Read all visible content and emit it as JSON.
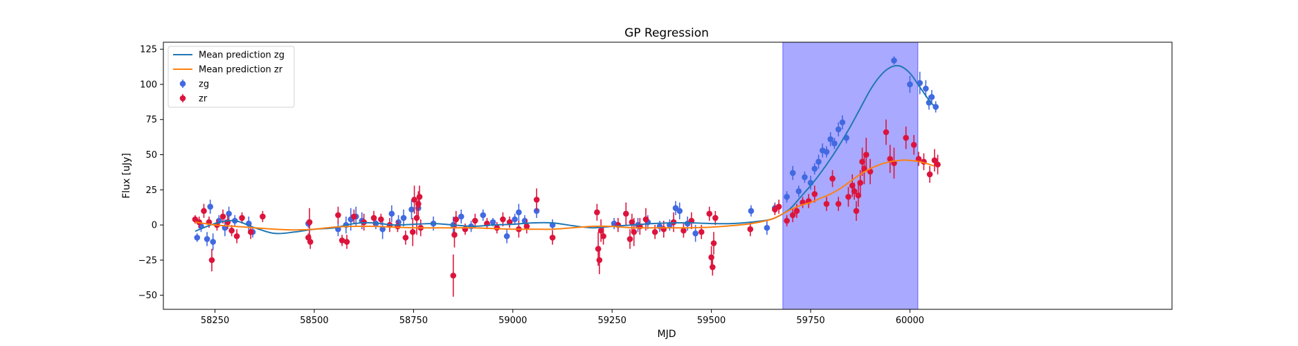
{
  "chart_data": {
    "type": "line",
    "title": "GP Regression",
    "xlabel": "MJD",
    "ylabel": "Flux [uJy]",
    "xlim": [
      58120,
      60660
    ],
    "ylim": [
      -60,
      130
    ],
    "xticks": [
      58250,
      58500,
      58750,
      59000,
      59250,
      59500,
      59750,
      60000
    ],
    "yticks": [
      -50,
      -25,
      0,
      25,
      50,
      75,
      100,
      125
    ],
    "grid": false,
    "legend_position": "top-left",
    "highlight_span": {
      "x0": 59680,
      "x1": 60020,
      "color": "#7b7bff"
    },
    "series": [
      {
        "name": "Mean prediction zg",
        "kind": "line",
        "color": "#1f77b4",
        "x": [
          58200,
          58250,
          58300,
          58350,
          58400,
          58450,
          58500,
          58550,
          58600,
          58650,
          58700,
          58750,
          58800,
          58850,
          58900,
          58950,
          59000,
          59050,
          59100,
          59150,
          59200,
          59250,
          59300,
          59350,
          59400,
          59450,
          59500,
          59550,
          59600,
          59650,
          59680,
          59700,
          59725,
          59750,
          59775,
          59800,
          59825,
          59850,
          59875,
          59900,
          59925,
          59950,
          59975,
          60000,
          60025,
          60050,
          60060
        ],
        "y": [
          -4.5,
          1,
          3,
          -2,
          -6,
          -5,
          -3,
          -2,
          1,
          1.5,
          0,
          0.5,
          1,
          0,
          -1,
          0,
          0.5,
          1.5,
          1.5,
          -0.5,
          -2,
          -1,
          0,
          1,
          1.5,
          1.5,
          1,
          1,
          2,
          4,
          8,
          12,
          20,
          28,
          37,
          47,
          58,
          70,
          83,
          96,
          106,
          112,
          113,
          108,
          98,
          88,
          85
        ]
      },
      {
        "name": "Mean prediction zr",
        "kind": "line",
        "color": "#ff7f0e",
        "x": [
          58200,
          58250,
          58300,
          58350,
          58400,
          58450,
          58500,
          58550,
          58600,
          58650,
          58700,
          58750,
          58800,
          58850,
          58900,
          58950,
          59000,
          59050,
          59100,
          59150,
          59200,
          59250,
          59300,
          59350,
          59400,
          59450,
          59500,
          59550,
          59600,
          59650,
          59680,
          59700,
          59725,
          59750,
          59775,
          59800,
          59825,
          59850,
          59875,
          59900,
          59925,
          59950,
          59975,
          60000,
          60025,
          60050,
          60060
        ],
        "y": [
          2,
          0,
          -1,
          -2,
          -3,
          -3.5,
          -3,
          -1.5,
          -1,
          -1,
          -1.5,
          -2,
          -2,
          -2,
          -2,
          -2.5,
          -3,
          -3,
          -3,
          -2,
          -1,
          -1,
          -2,
          -2,
          -2,
          -2,
          -1.5,
          -0.5,
          1,
          4,
          8,
          11,
          14,
          16,
          19,
          22,
          26,
          31,
          36,
          40,
          43,
          45,
          46,
          46,
          45,
          43,
          42
        ]
      },
      {
        "name": "zg",
        "kind": "errorbar",
        "color": "#4169e1",
        "x": [
          58205,
          58215,
          58230,
          58238,
          58245,
          58260,
          58275,
          58285,
          58300,
          58335,
          58345,
          58485,
          58560,
          58580,
          58592,
          58605,
          58620,
          58655,
          58672,
          58695,
          58712,
          58725,
          58745,
          58762,
          58800,
          58850,
          58870,
          58895,
          58925,
          58950,
          58985,
          59005,
          59015,
          59030,
          59060,
          59100,
          59255,
          59315,
          59340,
          59370,
          59395,
          59410,
          59420,
          59440,
          59460,
          59600,
          59640,
          59660,
          59690,
          59705,
          59720,
          59735,
          59750,
          59760,
          59770,
          59780,
          59790,
          59800,
          59810,
          59820,
          59830,
          59840,
          59960,
          60000,
          60025,
          60040,
          60048,
          60055,
          60065
        ],
        "y": [
          -9,
          -1,
          -10,
          13,
          -12,
          3,
          -2,
          8,
          3,
          1,
          -5,
          1,
          -3,
          0,
          4,
          6,
          3,
          1,
          -3,
          8,
          2,
          5,
          11,
          12,
          1,
          0,
          6,
          -1,
          7,
          2,
          -8,
          4,
          9,
          3,
          10,
          0,
          1,
          0,
          2,
          -1,
          0,
          12,
          10,
          1,
          -6,
          10,
          -2,
          12,
          20,
          37,
          24,
          34,
          30,
          40,
          45,
          53,
          52,
          61,
          58,
          68,
          73,
          62,
          117,
          100,
          101,
          97,
          87,
          91,
          84
        ],
        "err": [
          3,
          4,
          5,
          5,
          6,
          4,
          6,
          5,
          4,
          5,
          4,
          3,
          5,
          6,
          8,
          7,
          6,
          4,
          7,
          6,
          5,
          6,
          7,
          6,
          5,
          6,
          5,
          4,
          4,
          3,
          5,
          4,
          6,
          4,
          5,
          4,
          4,
          5,
          5,
          4,
          4,
          5,
          6,
          5,
          6,
          4,
          5,
          4,
          4,
          5,
          4,
          4,
          5,
          4,
          5,
          5,
          4,
          5,
          4,
          5,
          5,
          4,
          3,
          6,
          8,
          6,
          5,
          5,
          4
        ]
      },
      {
        "name": "zr",
        "kind": "errorbar",
        "color": "#dc143c",
        "x": [
          58200,
          58210,
          58222,
          58235,
          58242,
          58255,
          58270,
          58282,
          58292,
          58305,
          58318,
          58340,
          58370,
          58485,
          58488,
          58490,
          58560,
          58570,
          58582,
          58600,
          58625,
          58650,
          58668,
          58690,
          58710,
          58730,
          58748,
          58752,
          58758,
          58762,
          58765,
          58768,
          58850,
          58853,
          58857,
          58880,
          58905,
          58935,
          58960,
          58975,
          58992,
          59015,
          59035,
          59060,
          59100,
          59212,
          59215,
          59218,
          59222,
          59228,
          59265,
          59285,
          59295,
          59300,
          59305,
          59320,
          59335,
          59358,
          59380,
          59405,
          59430,
          59450,
          59475,
          59495,
          59500,
          59503,
          59506,
          59510,
          59598,
          59660,
          59670,
          59690,
          59705,
          59715,
          59730,
          59745,
          59760,
          59790,
          59805,
          59820,
          59845,
          59855,
          59860,
          59865,
          59870,
          59875,
          59880,
          59885,
          59890,
          59900,
          59940,
          59950,
          59960,
          59990,
          60010,
          60022,
          60035,
          60050,
          60062,
          60070
        ],
        "y": [
          4,
          2,
          10,
          2,
          -25,
          0,
          6,
          2,
          -4,
          -8,
          5,
          -5,
          6,
          -9,
          2,
          -12,
          7,
          -11,
          -12,
          6,
          2,
          5,
          4,
          0,
          -1,
          -9,
          -5,
          18,
          5,
          15,
          20,
          -2,
          -36,
          -7,
          4,
          -3,
          3,
          1,
          -2,
          4,
          2,
          -3,
          -1,
          18,
          -9,
          9,
          -17,
          -25,
          -4,
          -8,
          0,
          8,
          -10,
          2,
          -5,
          -1,
          4,
          -5,
          -3,
          2,
          -4,
          3,
          -5,
          8,
          -23,
          -30,
          -13,
          5,
          -3,
          11,
          13,
          3,
          7,
          10,
          16,
          17,
          22,
          15,
          33,
          15,
          20,
          28,
          24,
          10,
          21,
          30,
          45,
          40,
          50,
          38,
          66,
          47,
          44,
          62,
          57,
          47,
          45,
          36,
          46,
          43
        ],
        "err": [
          3,
          4,
          5,
          4,
          8,
          4,
          5,
          5,
          4,
          5,
          4,
          5,
          4,
          3,
          10,
          5,
          6,
          4,
          5,
          5,
          6,
          5,
          4,
          5,
          4,
          5,
          10,
          10,
          12,
          9,
          8,
          6,
          15,
          9,
          6,
          4,
          5,
          4,
          4,
          5,
          4,
          6,
          5,
          8,
          5,
          6,
          12,
          10,
          8,
          6,
          5,
          8,
          7,
          6,
          10,
          6,
          8,
          5,
          6,
          7,
          5,
          6,
          5,
          5,
          8,
          6,
          8,
          5,
          5,
          4,
          5,
          4,
          5,
          5,
          4,
          5,
          6,
          5,
          6,
          5,
          7,
          8,
          6,
          7,
          8,
          9,
          10,
          11,
          12,
          9,
          9,
          10,
          11,
          8,
          7,
          5,
          6,
          6,
          8,
          7
        ]
      }
    ]
  }
}
